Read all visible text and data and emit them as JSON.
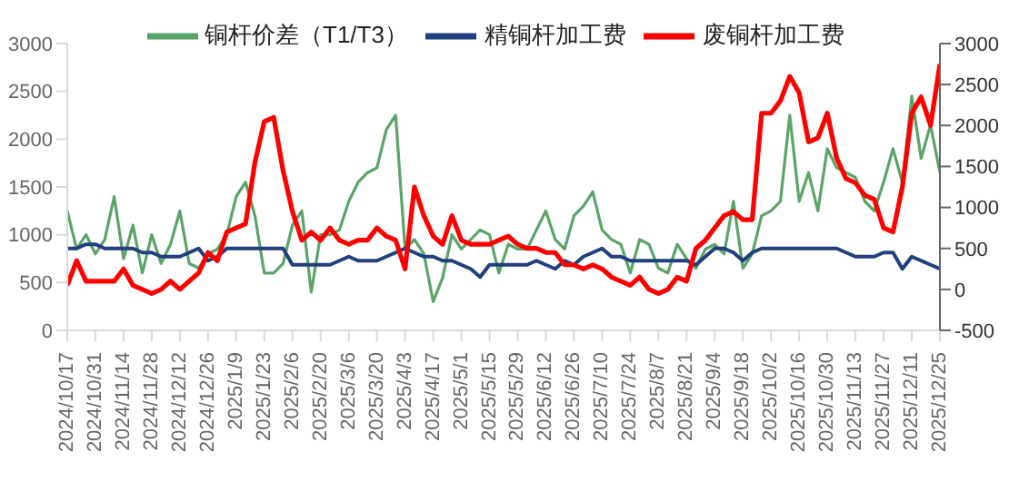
{
  "chart_data": {
    "type": "line",
    "categories": [
      "2024/10/17",
      null,
      null,
      "2024/10/31",
      null,
      null,
      "2024/11/14",
      null,
      null,
      "2024/11/28",
      null,
      null,
      "2024/12/12",
      null,
      null,
      "2024/12/26",
      null,
      null,
      "2025/1/9",
      null,
      null,
      "2025/1/23",
      null,
      null,
      "2025/2/6",
      null,
      null,
      "2025/2/20",
      null,
      null,
      "2025/3/6",
      null,
      null,
      "2025/3/20",
      null,
      null,
      "2025/4/3",
      null,
      null,
      "2025/4/17",
      null,
      null,
      "2025/5/1",
      null,
      null,
      "2025/5/15",
      null,
      null,
      "2025/5/29",
      null,
      null,
      "2025/6/12",
      null,
      null,
      "2025/6/26",
      null,
      null,
      "2025/7/10",
      null,
      null,
      "2025/7/24",
      null,
      null,
      "2025/8/7",
      null,
      null,
      "2025/8/21",
      null,
      null,
      "2025/9/4",
      null,
      null,
      "2025/9/18",
      null,
      null,
      "2025/10/2",
      null,
      null,
      "2025/10/16",
      null,
      null,
      "2025/10/30",
      null,
      null,
      "2025/11/13",
      null,
      null,
      "2025/11/27",
      null,
      null,
      "2025/12/11",
      null,
      null,
      "2025/12/25"
    ],
    "series": [
      {
        "name": "铜杆价差（T1/T3）",
        "color": "#5ba468",
        "values": [
          1250,
          850,
          1000,
          800,
          950,
          1400,
          750,
          1100,
          600,
          1000,
          700,
          900,
          1250,
          700,
          650,
          800,
          850,
          1000,
          1400,
          1550,
          1200,
          600,
          600,
          700,
          1100,
          1250,
          400,
          1000,
          1000,
          1050,
          1350,
          1550,
          1650,
          1700,
          2100,
          2250,
          850,
          950,
          800,
          300,
          550,
          1000,
          850,
          950,
          1050,
          1000,
          600,
          900,
          850,
          850,
          1050,
          1250,
          950,
          850,
          1200,
          1300,
          1450,
          1050,
          950,
          900,
          600,
          950,
          900,
          650,
          600,
          900,
          750,
          650,
          850,
          900,
          800,
          1350,
          650,
          800,
          1200,
          1250,
          1350,
          2250,
          1350,
          1650,
          1250,
          1900,
          1700,
          1650,
          1600,
          1350,
          1250,
          1550,
          1900,
          1550,
          2450,
          1800,
          2150,
          1650
        ]
      },
      {
        "name": "精铜杆加工费",
        "color": "#203f7c",
        "axis": "y2",
        "values": [
          500,
          500,
          550,
          550,
          500,
          500,
          500,
          500,
          450,
          450,
          400,
          400,
          400,
          450,
          500,
          350,
          400,
          500,
          500,
          500,
          500,
          500,
          500,
          500,
          300,
          300,
          300,
          300,
          300,
          350,
          400,
          350,
          350,
          350,
          400,
          450,
          500,
          450,
          400,
          400,
          350,
          350,
          300,
          250,
          150,
          300,
          300,
          300,
          300,
          300,
          350,
          300,
          250,
          350,
          300,
          400,
          450,
          500,
          400,
          400,
          350,
          350,
          350,
          350,
          350,
          350,
          350,
          300,
          400,
          500,
          500,
          450,
          350,
          450,
          500,
          500,
          500,
          500,
          500,
          500,
          500,
          500,
          500,
          450,
          400,
          400,
          400,
          450,
          450,
          250,
          400,
          350,
          300,
          250
        ]
      },
      {
        "name": "废铜杆加工费",
        "color": "#ff0000",
        "axis": "y2",
        "values": [
          50,
          350,
          100,
          100,
          100,
          100,
          250,
          50,
          0,
          -50,
          0,
          100,
          0,
          100,
          200,
          450,
          350,
          700,
          750,
          800,
          1550,
          2050,
          2100,
          1450,
          950,
          600,
          700,
          600,
          750,
          600,
          550,
          600,
          600,
          750,
          650,
          600,
          250,
          1250,
          900,
          650,
          550,
          900,
          600,
          550,
          550,
          550,
          600,
          650,
          550,
          500,
          500,
          450,
          450,
          300,
          300,
          250,
          300,
          250,
          150,
          100,
          50,
          150,
          0,
          -50,
          0,
          150,
          100,
          500,
          600,
          750,
          900,
          950,
          850,
          850,
          2150,
          2150,
          2300,
          2600,
          2400,
          1800,
          1850,
          2150,
          1600,
          1350,
          1300,
          1150,
          1100,
          750,
          700,
          1250,
          2150,
          2350,
          2000,
          2750
        ]
      }
    ],
    "ylim": [
      0,
      3000
    ],
    "yticks": [
      0,
      500,
      1000,
      1500,
      2000,
      2500,
      3000
    ],
    "y2lim": [
      -500,
      3000
    ],
    "y2ticks": [
      -500,
      0,
      500,
      1000,
      1500,
      2000,
      2500,
      3000
    ],
    "legend": "top",
    "marker": "none",
    "line_style": "solid"
  }
}
